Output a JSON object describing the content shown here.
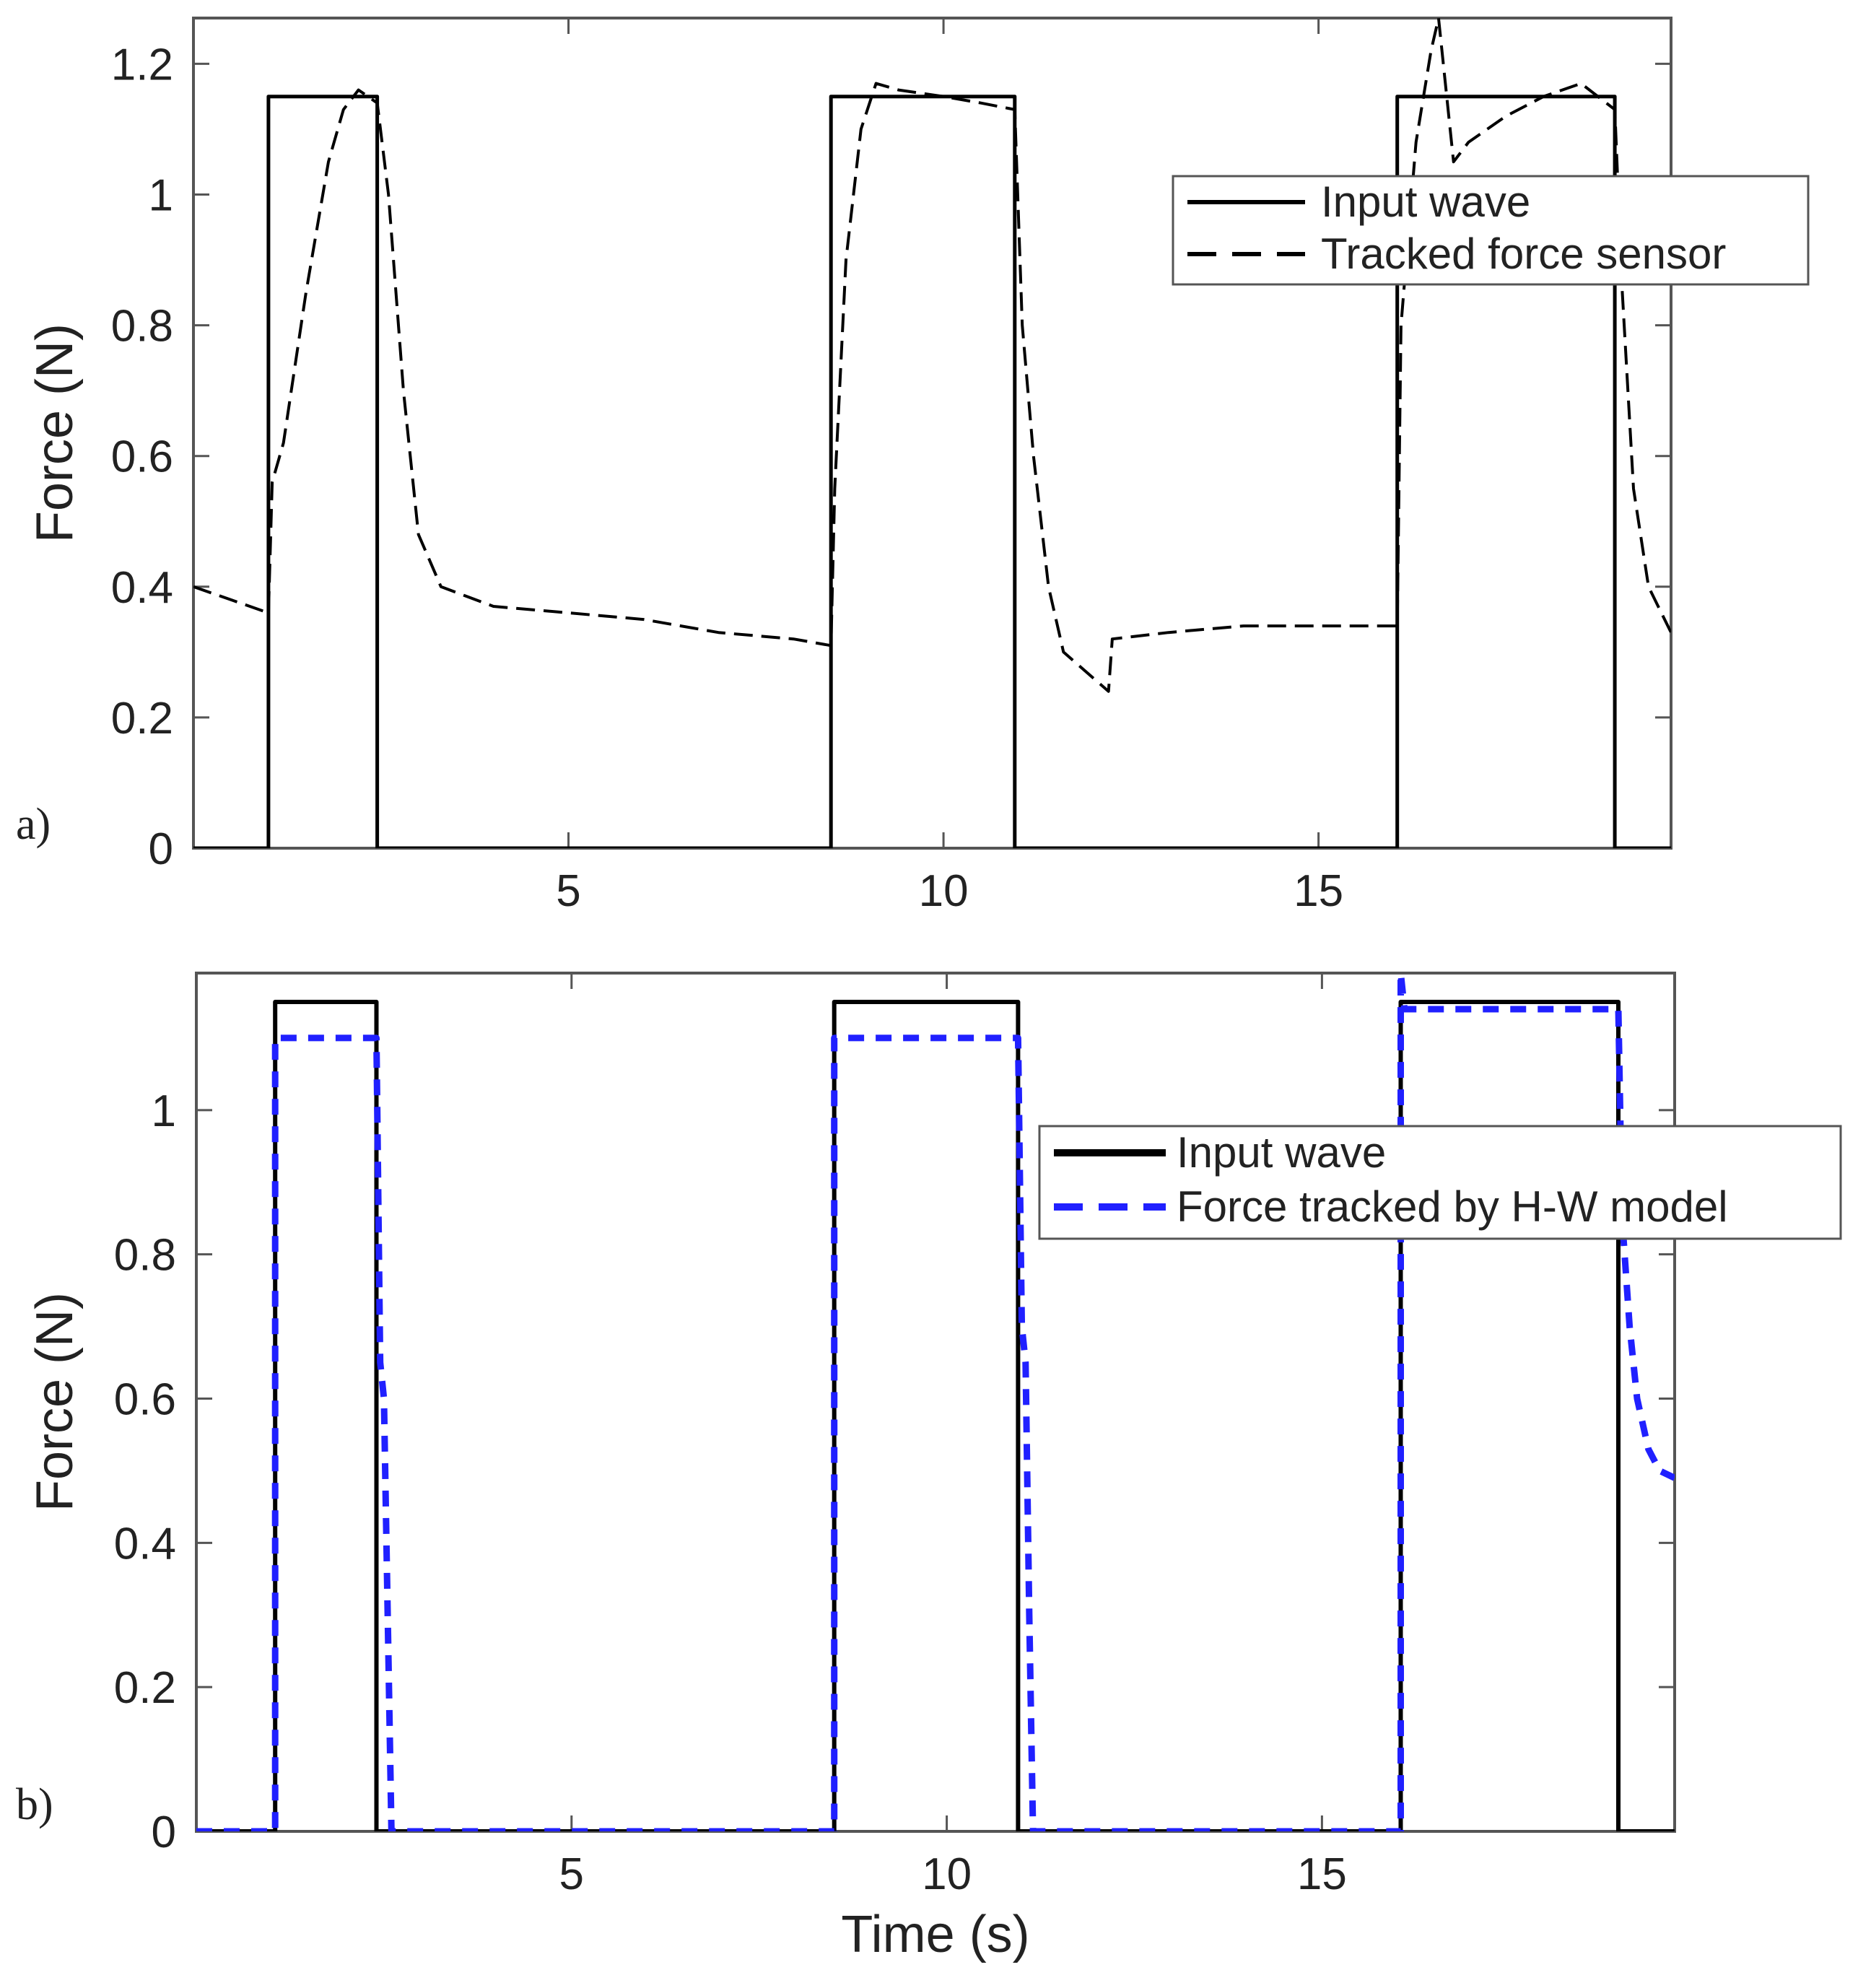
{
  "chart_data": [
    {
      "type": "line",
      "panel_label": "a)",
      "xlabel": "",
      "ylabel": "Force (N)",
      "xlim": [
        0,
        19.7
      ],
      "ylim": [
        0,
        1.27
      ],
      "xticks": [
        5,
        10,
        15
      ],
      "yticks": [
        0,
        0.2,
        0.4,
        0.6,
        0.8,
        1,
        1.2
      ],
      "ytick_labels": [
        "0",
        "0.2",
        "0.4",
        "0.6",
        "0.8",
        "1",
        "1.2"
      ],
      "grid": false,
      "legend_position": "top-right",
      "series": [
        {
          "name": "Input wave",
          "color": "#000000",
          "style": "solid",
          "x": [
            0,
            1.0,
            1.0,
            2.45,
            2.45,
            8.5,
            8.5,
            10.95,
            10.95,
            16.05,
            16.05,
            18.95,
            18.95,
            19.7
          ],
          "y": [
            0,
            0,
            1.15,
            1.15,
            0,
            0,
            1.15,
            1.15,
            0,
            0,
            1.15,
            1.15,
            0,
            0
          ]
        },
        {
          "name": "Tracked force sensor",
          "color": "#000000",
          "style": "dashed",
          "x": [
            0,
            0.5,
            1.0,
            1.05,
            1.2,
            1.5,
            1.8,
            2.0,
            2.2,
            2.45,
            2.6,
            2.8,
            3.0,
            3.3,
            4.0,
            5.0,
            6.0,
            7.0,
            8.0,
            8.5,
            8.55,
            8.7,
            8.9,
            9.1,
            9.4,
            10.0,
            10.5,
            10.95,
            11.05,
            11.2,
            11.4,
            11.6,
            12.0,
            12.2,
            12.25,
            13.0,
            14.0,
            15.0,
            16.05,
            16.1,
            16.3,
            16.5,
            16.6,
            16.8,
            17.0,
            17.5,
            18.0,
            18.5,
            18.95,
            19.05,
            19.2,
            19.4,
            19.7
          ],
          "y": [
            0.4,
            0.38,
            0.36,
            0.56,
            0.62,
            0.85,
            1.05,
            1.13,
            1.16,
            1.14,
            1.0,
            0.7,
            0.48,
            0.4,
            0.37,
            0.36,
            0.35,
            0.33,
            0.32,
            0.31,
            0.55,
            0.9,
            1.1,
            1.17,
            1.16,
            1.15,
            1.14,
            1.13,
            0.8,
            0.6,
            0.4,
            0.3,
            0.26,
            0.24,
            0.32,
            0.33,
            0.34,
            0.34,
            0.34,
            0.8,
            1.08,
            1.22,
            1.27,
            1.05,
            1.08,
            1.12,
            1.15,
            1.17,
            1.13,
            0.85,
            0.55,
            0.4,
            0.33
          ]
        }
      ]
    },
    {
      "type": "line",
      "panel_label": "b)",
      "xlabel": "Time (s)",
      "ylabel": "Force (N)",
      "xlim": [
        0,
        19.7
      ],
      "ylim": [
        0,
        1.19
      ],
      "xticks": [
        5,
        10,
        15
      ],
      "yticks": [
        0,
        0.2,
        0.4,
        0.6,
        0.8,
        1
      ],
      "ytick_labels": [
        "0",
        "0.2",
        "0.4",
        "0.6",
        "0.8",
        "1"
      ],
      "grid": false,
      "legend_position": "top-right",
      "series": [
        {
          "name": "Input wave",
          "color": "#000000",
          "style": "solid",
          "x": [
            0,
            1.05,
            1.05,
            2.4,
            2.4,
            8.5,
            8.5,
            10.95,
            10.95,
            16.05,
            16.05,
            18.95,
            18.95,
            19.7
          ],
          "y": [
            0,
            0,
            1.15,
            1.15,
            0,
            0,
            1.15,
            1.15,
            0,
            0,
            1.15,
            1.15,
            0,
            0
          ]
        },
        {
          "name": "Force tracked by H-W model",
          "color": "#2020ff",
          "style": "dashed",
          "x": [
            0,
            1.05,
            1.05,
            2.4,
            2.45,
            2.5,
            2.55,
            2.6,
            8.5,
            8.5,
            10.95,
            11.0,
            11.05,
            11.1,
            11.15,
            16.05,
            16.05,
            16.1,
            16.15,
            18.95,
            19.0,
            19.1,
            19.2,
            19.35,
            19.5,
            19.7
          ],
          "y": [
            0,
            0,
            1.1,
            1.1,
            0.65,
            0.6,
            0.3,
            0,
            0,
            1.1,
            1.1,
            0.7,
            0.65,
            0.3,
            0,
            0,
            1.19,
            1.14,
            1.14,
            1.14,
            0.85,
            0.7,
            0.6,
            0.53,
            0.5,
            0.49
          ]
        }
      ]
    }
  ]
}
